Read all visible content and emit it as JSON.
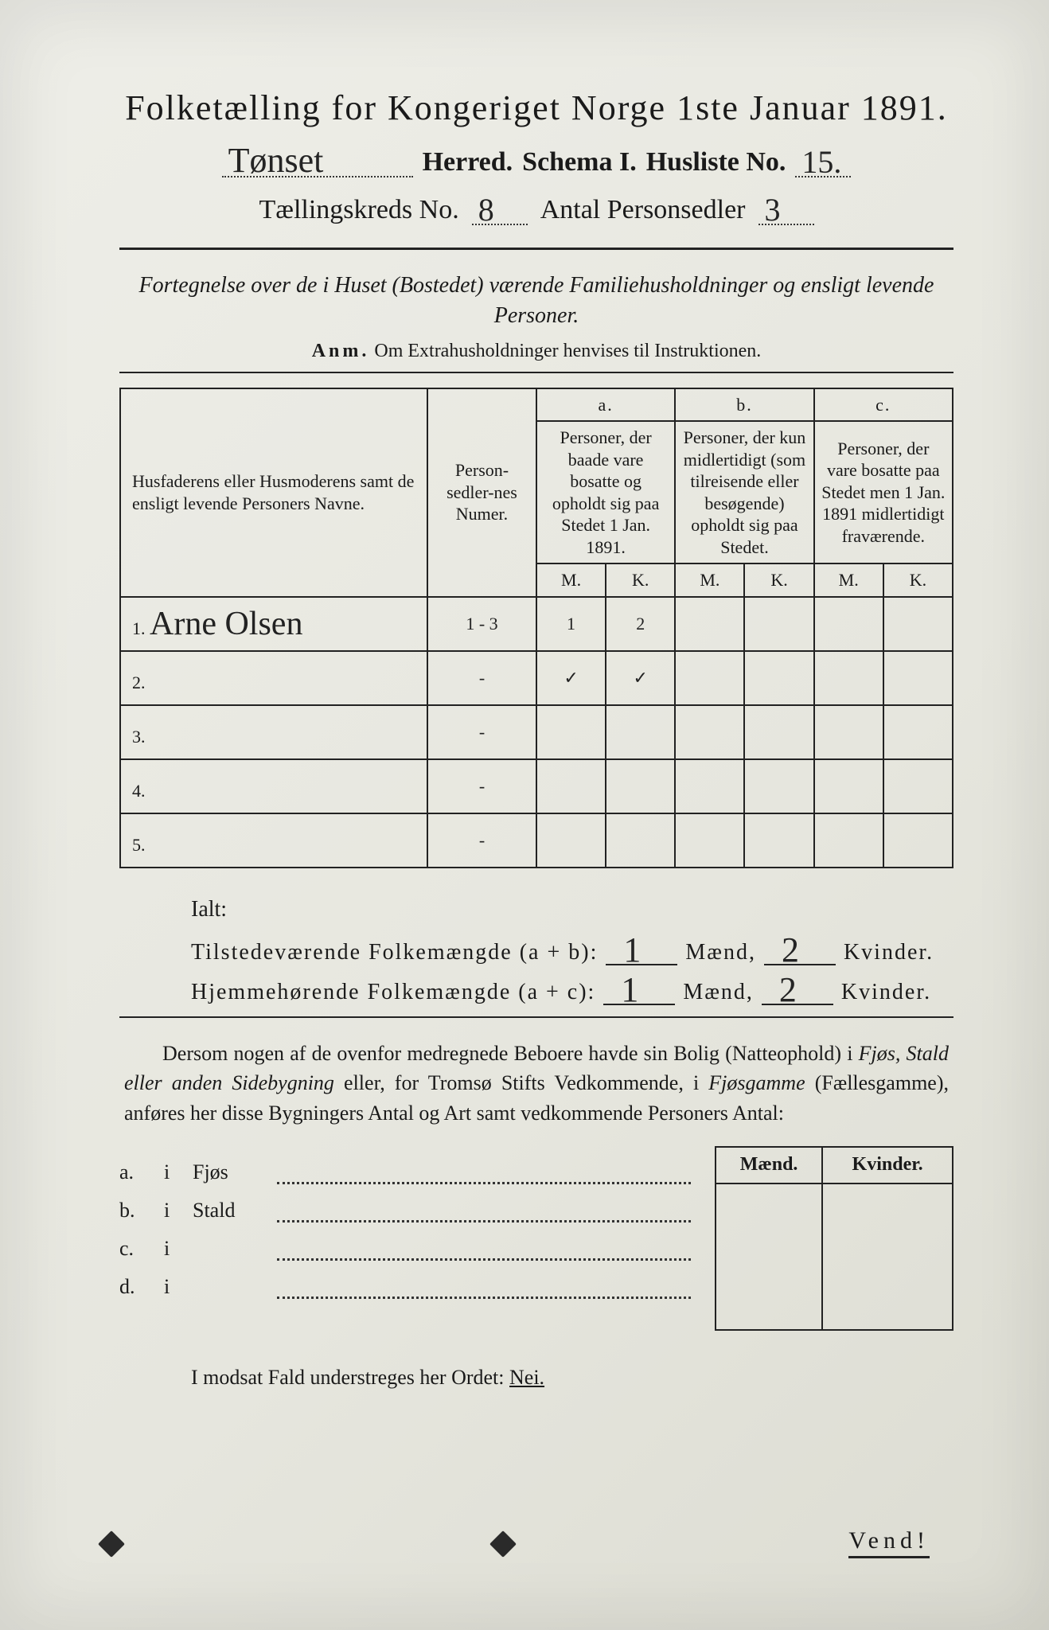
{
  "colors": {
    "paper_bg_start": "#eeeee8",
    "paper_bg_end": "#dcdcd2",
    "ink": "#1a1a1a",
    "rule": "#222222"
  },
  "typography": {
    "title_fontsize": 44,
    "body_fontsize": 26,
    "handwritten_family": "Brush Script MT"
  },
  "title": "Folketælling for Kongeriget Norge 1ste Januar 1891.",
  "header": {
    "herred_handwritten": "Tønset",
    "herred_label": "Herred.",
    "schema_label": "Schema I.",
    "husliste_label": "Husliste No.",
    "husliste_no": "15.",
    "kreds_label": "Tællingskreds No.",
    "kreds_no": "8",
    "antal_label": "Antal Personsedler",
    "antal_no": "3"
  },
  "intro": "Fortegnelse over de i Huset (Bostedet) værende Familiehusholdninger og ensligt levende Personer.",
  "anm_lead": "Anm.",
  "anm_text": "Om Extrahusholdninger henvises til Instruktionen.",
  "table": {
    "col_names": {
      "names": "Husfaderens eller Husmoderens samt de ensligt levende Personers Navne.",
      "numer": "Person-sedler-nes Numer.",
      "a_head": "a.",
      "a_text": "Personer, der baade vare bosatte og opholdt sig paa Stedet 1 Jan. 1891.",
      "b_head": "b.",
      "b_text": "Personer, der kun midlertidigt (som tilreisende eller besøgende) opholdt sig paa Stedet.",
      "c_head": "c.",
      "c_text": "Personer, der vare bosatte paa Stedet men 1 Jan. 1891 midlertidigt fraværende.",
      "M": "M.",
      "K": "K."
    },
    "rows": [
      {
        "n": "1.",
        "name_hand": "Arne Olsen",
        "numer": "1 - 3",
        "aM": "1",
        "aK": "2",
        "bM": "",
        "bK": "",
        "cM": "",
        "cK": ""
      },
      {
        "n": "2.",
        "name_hand": "",
        "numer": "-",
        "aM": "✓",
        "aK": "✓",
        "bM": "",
        "bK": "",
        "cM": "",
        "cK": ""
      },
      {
        "n": "3.",
        "name_hand": "",
        "numer": "-",
        "aM": "",
        "aK": "",
        "bM": "",
        "bK": "",
        "cM": "",
        "cK": ""
      },
      {
        "n": "4.",
        "name_hand": "",
        "numer": "-",
        "aM": "",
        "aK": "",
        "bM": "",
        "bK": "",
        "cM": "",
        "cK": ""
      },
      {
        "n": "5.",
        "name_hand": "",
        "numer": "-",
        "aM": "",
        "aK": "",
        "bM": "",
        "bK": "",
        "cM": "",
        "cK": ""
      }
    ]
  },
  "ialt": {
    "heading": "Ialt:",
    "line1_label": "Tilstedeværende Folkemængde (a + b):",
    "line2_label": "Hjemmehørende Folkemængde (a + c):",
    "maend": "Mænd,",
    "kvinder": "Kvinder.",
    "v1_m": "1",
    "v1_k": "2",
    "v2_m": "1",
    "v2_k": "2"
  },
  "dersom": "Dersom nogen af de ovenfor medregnede Beboere havde sin Bolig (Natteophold) i Fjøs, Stald eller anden Sidebygning eller, for Tromsø Stifts Vedkommende, i Fjøsgamme (Fællesgamme), anføres her disse Bygningers Antal og Art samt vedkommende Personers Antal:",
  "bygning": {
    "items": [
      {
        "lbl": "a.",
        "word": "Fjøs"
      },
      {
        "lbl": "b.",
        "word": "Stald"
      },
      {
        "lbl": "c.",
        "word": ""
      },
      {
        "lbl": "d.",
        "word": ""
      }
    ],
    "side_head_m": "Mænd.",
    "side_head_k": "Kvinder."
  },
  "nei_line_pre": "I modsat Fald understreges her Ordet:",
  "nei_word": "Nei.",
  "vend": "Vend!"
}
